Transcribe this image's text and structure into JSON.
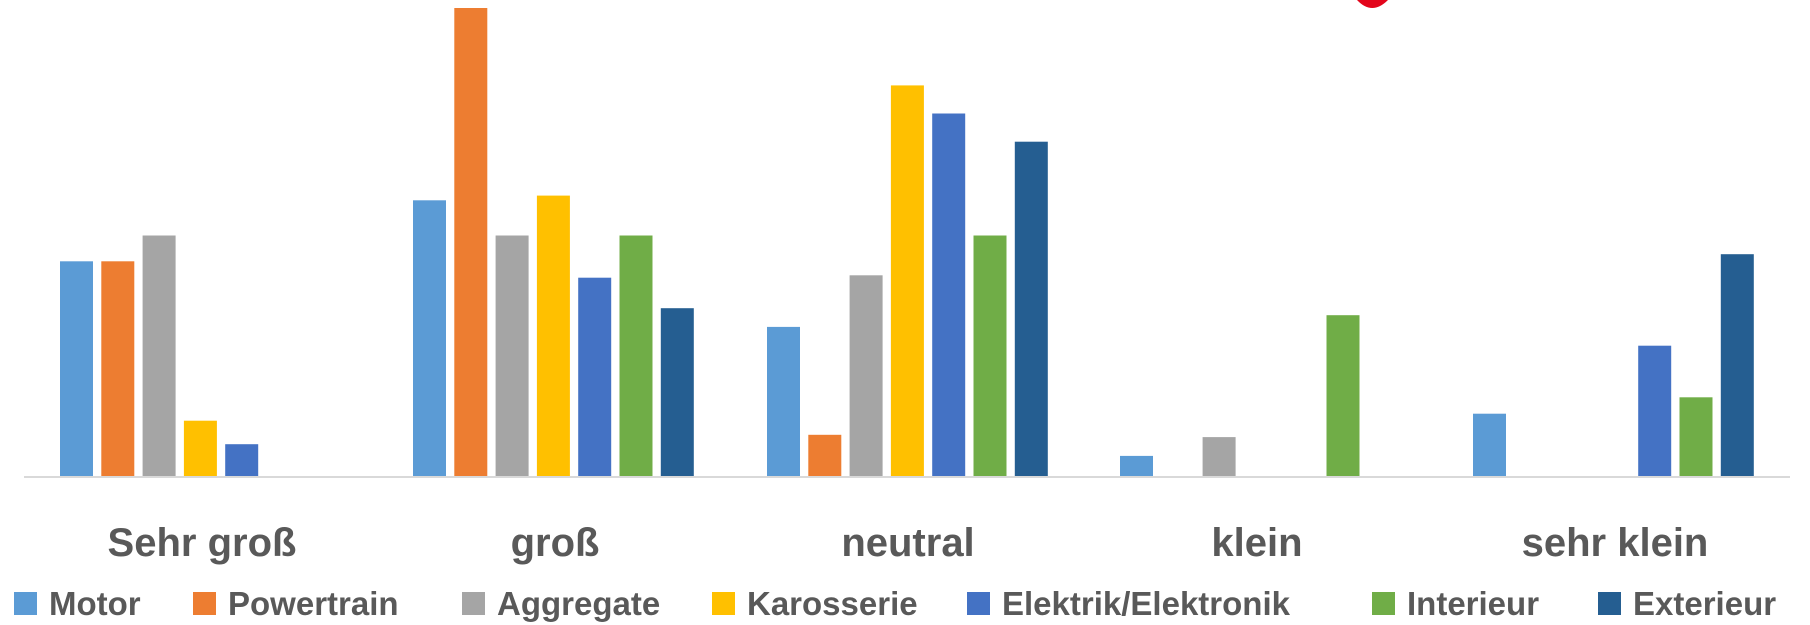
{
  "chart_data": {
    "type": "bar",
    "title": "",
    "xlabel": "",
    "ylabel": "",
    "ylim": [
      0,
      100
    ],
    "grid": false,
    "legend_position": "bottom",
    "categories": [
      "Sehr groß",
      "groß",
      "neutral",
      "klein",
      "sehr klein"
    ],
    "series": [
      {
        "name": "Motor",
        "color": "#5B9BD5",
        "values": [
          46,
          59,
          32,
          4.5,
          13.5
        ]
      },
      {
        "name": "Powertrain",
        "color": "#ED7D31",
        "values": [
          46,
          100,
          9,
          0,
          0
        ]
      },
      {
        "name": "Aggregate",
        "color": "#A5A5A5",
        "values": [
          51.5,
          51.5,
          43,
          8.5,
          0
        ]
      },
      {
        "name": "Karosserie",
        "color": "#FFC000",
        "values": [
          12,
          60,
          83.5,
          0,
          0
        ]
      },
      {
        "name": "Elektrik/Elektronik",
        "color": "#4472C4",
        "values": [
          7,
          42.5,
          77.5,
          0,
          28
        ]
      },
      {
        "name": "Interieur",
        "color": "#70AD47",
        "values": [
          0,
          51.5,
          51.5,
          34.5,
          17
        ]
      },
      {
        "name": "Exterieur",
        "color": "#255E91",
        "values": [
          0,
          36,
          71.5,
          0,
          47.5
        ]
      }
    ]
  },
  "decoration": {
    "color": "#E3051B"
  }
}
